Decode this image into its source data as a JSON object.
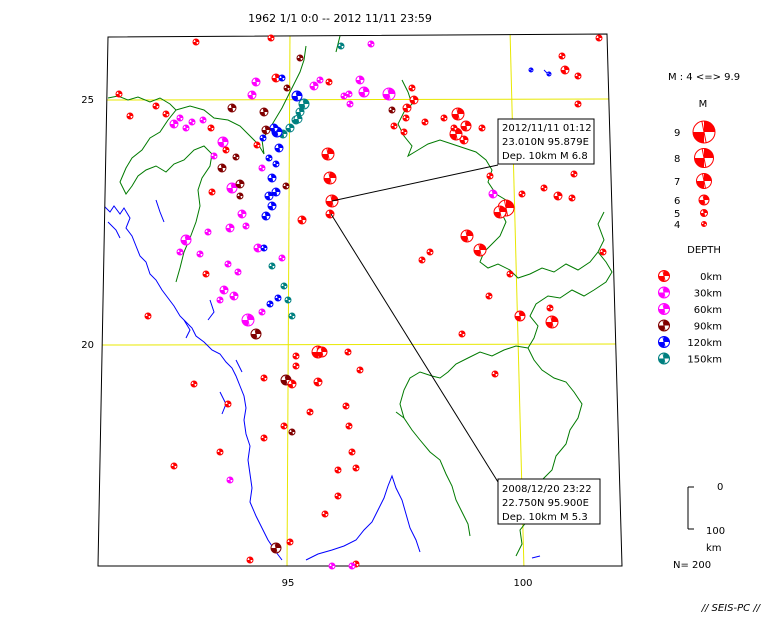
{
  "title": "1962 1/1 0:0 -- 2012 11/11 23:59",
  "map": {
    "lat_labels": [
      "25",
      "20"
    ],
    "lon_labels": [
      "95",
      "100"
    ],
    "colors": {
      "border": "#007a00",
      "coast": "#0000ff",
      "grid": "#e8e800"
    }
  },
  "callouts": [
    {
      "line1": "2012/11/11 01:12",
      "line2": "23.010N  95.879E",
      "line3": "Dep. 10km    M 6.8"
    },
    {
      "line1": "2008/12/20 23:22",
      "line2": "22.750N  95.900E",
      "line3": "Dep. 10km    M 5.3"
    }
  ],
  "legend": {
    "mag_range": "M : 4 <=> 9.9",
    "mag_title": "M",
    "magnitudes": [
      "9",
      "8",
      "7",
      "6",
      "5",
      "4"
    ],
    "depth_title": "DEPTH",
    "depths": [
      {
        "label": "0km",
        "color": "#ff0000"
      },
      {
        "label": "30km",
        "color": "#ff00ff"
      },
      {
        "label": "60km",
        "color": "#ff00ff"
      },
      {
        "label": "90km",
        "color": "#800000"
      },
      {
        "label": "120km",
        "color": "#0000ff"
      },
      {
        "label": "150km",
        "color": "#008080"
      }
    ],
    "scale_top": "0",
    "scale_bottom": "100",
    "scale_unit": "km",
    "count": "N= 200"
  },
  "footer": "// SEIS-PC //"
}
